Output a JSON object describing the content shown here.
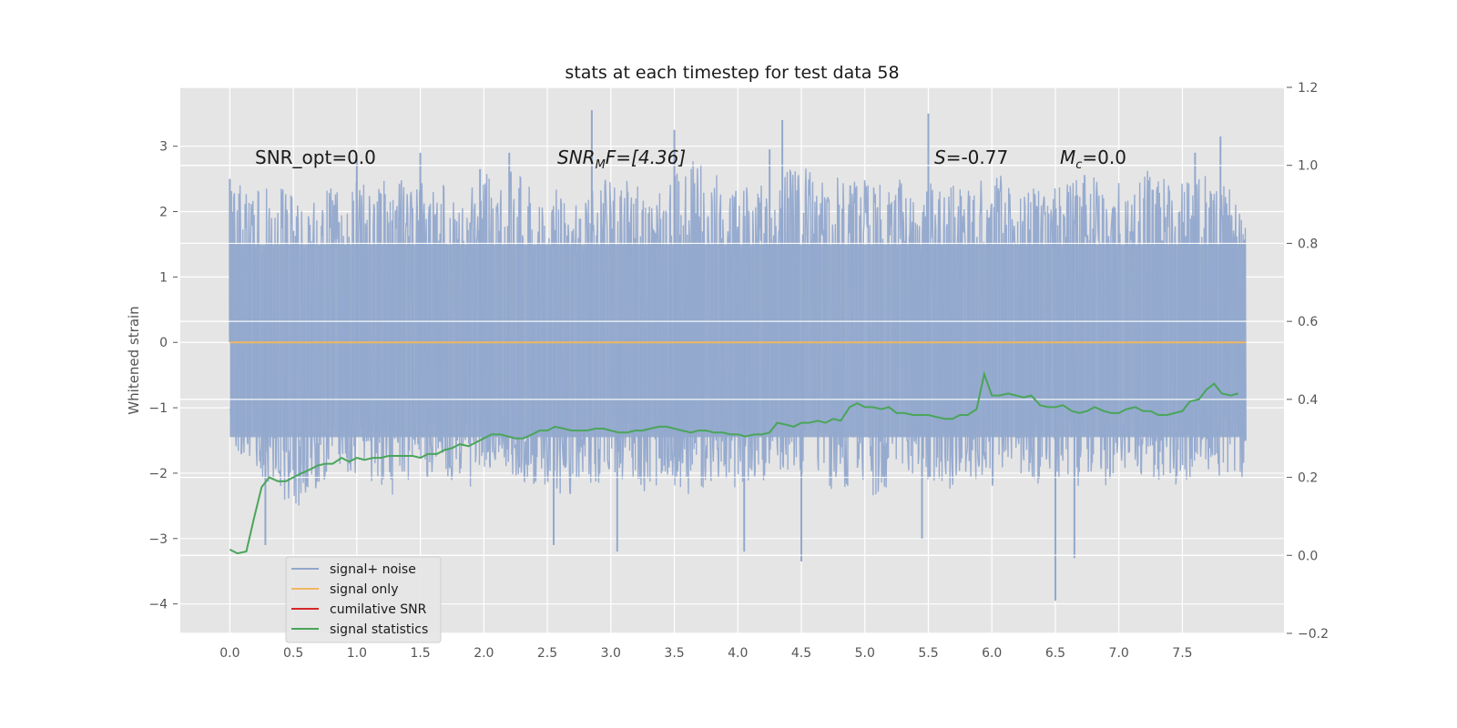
{
  "chart_data": {
    "type": "line",
    "title": "stats at each timestep for test data 58",
    "ylabel": "Whitened strain",
    "xlabel": "",
    "xlim": [
      -0.39,
      8.3
    ],
    "ylim": [
      -4.45,
      3.9
    ],
    "y2lim": [
      -0.2,
      1.2
    ],
    "x_ticks": [
      "0.0",
      "0.5",
      "1.0",
      "1.5",
      "2.0",
      "2.5",
      "3.0",
      "3.5",
      "4.0",
      "4.5",
      "5.0",
      "5.5",
      "6.0",
      "6.5",
      "7.0",
      "7.5"
    ],
    "x_tick_values": [
      0.0,
      0.5,
      1.0,
      1.5,
      2.0,
      2.5,
      3.0,
      3.5,
      4.0,
      4.5,
      5.0,
      5.5,
      6.0,
      6.5,
      7.0,
      7.5
    ],
    "y_ticks": [
      "3",
      "2",
      "1",
      "0",
      "−1",
      "−2",
      "−3",
      "−4"
    ],
    "y_tick_values": [
      3,
      2,
      1,
      0,
      -1,
      -2,
      -3,
      -4
    ],
    "y2_ticks": [
      "1.2",
      "1.0",
      "0.8",
      "0.6",
      "0.4",
      "0.2",
      "0.0",
      "−0.2"
    ],
    "y2_tick_values": [
      1.2,
      1.0,
      0.8,
      0.6,
      0.4,
      0.2,
      0.0,
      -0.2
    ],
    "grid": true,
    "legend_position": "lower-left",
    "annotations": {
      "snr_opt": "SNR_opt=0.0",
      "snr_mf_main": "SNR",
      "snr_mf_sub": "M",
      "snr_mf_rest": "F=[4.36]",
      "s_var": "S",
      "s_val": "=-0.77",
      "mc_var": "M",
      "mc_sub": "c",
      "mc_val": "=0.0"
    },
    "series": [
      {
        "name": "signal+ noise",
        "color": "#92a8cd",
        "axis": "left",
        "x_start": 0.0,
        "x_end": 8.0,
        "envelope_upper": [
          2.5,
          2.3,
          2.4,
          2.2,
          2.5,
          2.3,
          2.7,
          2.4,
          2.6,
          2.5,
          2.4,
          2.6,
          2.7,
          2.5,
          2.4,
          2.3,
          2.5,
          2.6,
          2.4,
          2.5,
          2.9,
          2.6,
          2.5,
          2.4,
          2.6,
          2.7,
          2.5,
          2.6,
          2.4,
          2.5,
          2.4,
          2.6,
          2.5,
          2.7,
          2.6,
          2.5,
          2.4,
          2.6,
          2.5,
          2.4,
          2.7,
          2.5,
          2.6,
          2.4,
          2.3
        ],
        "envelope_lower": [
          -1.6,
          -1.9,
          -2.3,
          -2.6,
          -2.2,
          -2.0,
          -2.1,
          -2.4,
          -2.0,
          -2.2,
          -2.3,
          -2.1,
          -2.0,
          -2.2,
          -2.3,
          -2.4,
          -2.2,
          -2.1,
          -2.3,
          -2.2,
          -2.4,
          -2.1,
          -2.3,
          -2.2,
          -2.0,
          -2.1,
          -2.3,
          -2.2,
          -2.4,
          -2.0,
          -2.2,
          -2.3,
          -2.1,
          -2.2,
          -2.0,
          -2.2,
          -2.1,
          -2.3,
          -2.2,
          -2.0,
          -2.1,
          -2.2,
          -2.0,
          -2.1,
          -2.1
        ],
        "spikes": [
          {
            "x": 0.0,
            "y": 2.5
          },
          {
            "x": 0.28,
            "y": -3.1
          },
          {
            "x": 1.0,
            "y": 2.8
          },
          {
            "x": 1.5,
            "y": 2.9
          },
          {
            "x": 2.55,
            "y": -3.1
          },
          {
            "x": 2.85,
            "y": 3.55
          },
          {
            "x": 3.05,
            "y": -3.2
          },
          {
            "x": 3.5,
            "y": 3.25
          },
          {
            "x": 4.05,
            "y": -3.2
          },
          {
            "x": 4.35,
            "y": 3.4
          },
          {
            "x": 4.5,
            "y": -3.35
          },
          {
            "x": 5.5,
            "y": 3.5
          },
          {
            "x": 5.45,
            "y": -3.0
          },
          {
            "x": 6.5,
            "y": -3.95
          },
          {
            "x": 6.65,
            "y": -3.3
          },
          {
            "x": 7.6,
            "y": 2.9
          },
          {
            "x": 7.8,
            "y": 3.15
          },
          {
            "x": 1.97,
            "y": 2.65
          },
          {
            "x": 4.25,
            "y": 2.95
          },
          {
            "x": 2.2,
            "y": 2.9
          }
        ]
      },
      {
        "name": "signal only",
        "color": "#f0b760",
        "axis": "left",
        "x": [
          0.0,
          8.0
        ],
        "y": [
          0.0,
          0.0
        ]
      },
      {
        "name": "cumilative SNR",
        "color": "#d62728",
        "axis": "right",
        "x": [],
        "y": []
      },
      {
        "name": "signal statistics",
        "color": "#4aa55a",
        "axis": "right",
        "x": [
          0.0,
          0.06,
          0.13,
          0.19,
          0.25,
          0.31,
          0.38,
          0.44,
          0.5,
          0.56,
          0.63,
          0.69,
          0.75,
          0.81,
          0.88,
          0.94,
          1.0,
          1.06,
          1.13,
          1.19,
          1.25,
          1.31,
          1.38,
          1.44,
          1.5,
          1.56,
          1.63,
          1.69,
          1.75,
          1.81,
          1.88,
          1.94,
          2.0,
          2.06,
          2.13,
          2.19,
          2.25,
          2.31,
          2.38,
          2.44,
          2.5,
          2.56,
          2.63,
          2.69,
          2.75,
          2.81,
          2.88,
          2.94,
          3.0,
          3.06,
          3.13,
          3.19,
          3.25,
          3.31,
          3.38,
          3.44,
          3.5,
          3.56,
          3.63,
          3.69,
          3.75,
          3.81,
          3.88,
          3.94,
          4.0,
          4.06,
          4.13,
          4.19,
          4.25,
          4.31,
          4.38,
          4.44,
          4.5,
          4.56,
          4.63,
          4.69,
          4.75,
          4.81,
          4.88,
          4.94,
          5.0,
          5.06,
          5.13,
          5.19,
          5.25,
          5.31,
          5.38,
          5.44,
          5.5,
          5.56,
          5.63,
          5.69,
          5.75,
          5.81,
          5.88,
          5.94,
          6.0,
          6.06,
          6.13,
          6.19,
          6.25,
          6.31,
          6.38,
          6.44,
          6.5,
          6.56,
          6.63,
          6.69,
          6.75,
          6.81,
          6.88,
          6.94,
          7.0,
          7.06,
          7.13,
          7.19,
          7.25,
          7.31,
          7.38,
          7.44,
          7.5,
          7.56,
          7.63,
          7.69,
          7.75,
          7.81,
          7.88,
          7.94
        ],
        "y": [
          0.015,
          0.005,
          0.01,
          0.095,
          0.175,
          0.2,
          0.19,
          0.19,
          0.2,
          0.21,
          0.22,
          0.23,
          0.235,
          0.235,
          0.25,
          0.24,
          0.25,
          0.245,
          0.25,
          0.25,
          0.255,
          0.255,
          0.255,
          0.255,
          0.25,
          0.26,
          0.26,
          0.27,
          0.275,
          0.285,
          0.28,
          0.29,
          0.3,
          0.31,
          0.31,
          0.305,
          0.3,
          0.3,
          0.31,
          0.32,
          0.32,
          0.33,
          0.325,
          0.32,
          0.32,
          0.32,
          0.325,
          0.325,
          0.32,
          0.315,
          0.315,
          0.32,
          0.32,
          0.325,
          0.33,
          0.33,
          0.325,
          0.32,
          0.315,
          0.32,
          0.32,
          0.315,
          0.315,
          0.31,
          0.31,
          0.305,
          0.31,
          0.31,
          0.315,
          0.34,
          0.335,
          0.33,
          0.34,
          0.34,
          0.345,
          0.34,
          0.35,
          0.345,
          0.38,
          0.39,
          0.38,
          0.38,
          0.375,
          0.38,
          0.365,
          0.365,
          0.36,
          0.36,
          0.36,
          0.355,
          0.35,
          0.35,
          0.36,
          0.36,
          0.375,
          0.465,
          0.41,
          0.41,
          0.415,
          0.41,
          0.405,
          0.41,
          0.385,
          0.38,
          0.38,
          0.385,
          0.37,
          0.365,
          0.37,
          0.38,
          0.37,
          0.365,
          0.365,
          0.375,
          0.38,
          0.37,
          0.37,
          0.36,
          0.36,
          0.365,
          0.37,
          0.395,
          0.4,
          0.425,
          0.44,
          0.415,
          0.41,
          0.415
        ]
      }
    ]
  }
}
